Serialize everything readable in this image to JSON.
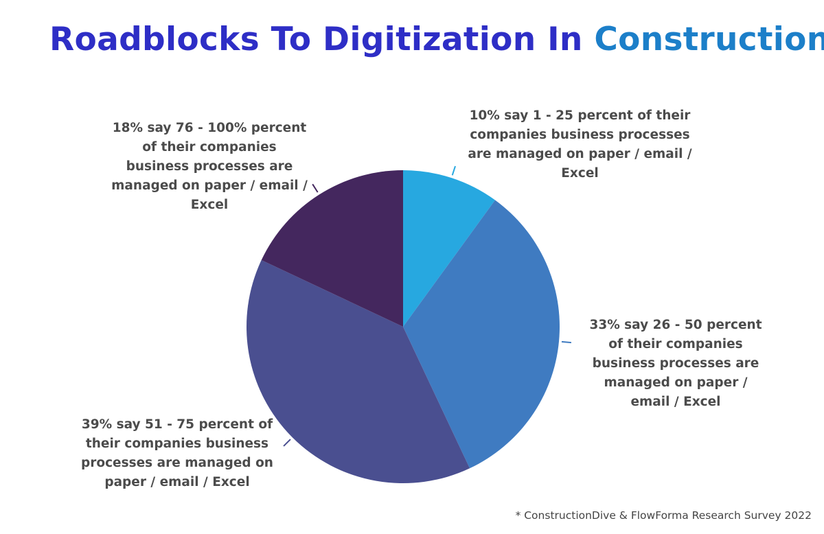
{
  "title_part1": "Roadblocks To Digitization In",
  "title_part2": "Construction",
  "source_note": "* ConstructionDive & FlowForma Research Survey 2022",
  "colors": {
    "title_primary": "#2e2ec6",
    "title_accent": "#1c7fc9",
    "label_text": "#4b4b4b"
  },
  "chart_data": {
    "type": "pie",
    "title": "Roadblocks To Digitization In Construction",
    "slices": [
      {
        "label": "1 - 25 percent",
        "value": 10,
        "color": "#27a8e0",
        "annotation": "10% say 1 - 25 percent of their companies business processes are managed on paper / email / Excel"
      },
      {
        "label": "26 - 50 percent",
        "value": 33,
        "color": "#3f7bc1",
        "annotation": "33% say 26 - 50 percent of their companies business processes are managed on paper / email / Excel"
      },
      {
        "label": "51 - 75 percent",
        "value": 39,
        "color": "#4a4f90",
        "annotation": "39% say 51 - 75 percent of their companies business processes are managed on paper / email / Excel"
      },
      {
        "label": "76 - 100% percent",
        "value": 18,
        "color": "#44275e",
        "annotation": "18% say 76 - 100% percent of their companies business processes are managed on paper / email / Excel"
      }
    ]
  }
}
